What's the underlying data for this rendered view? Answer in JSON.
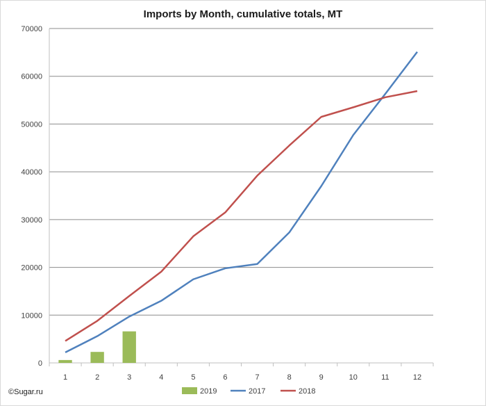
{
  "chart_data": {
    "type": "bar+line",
    "title": "Imports by Month, cumulative totals, MT",
    "xlabel": "",
    "ylabel": "",
    "categories": [
      "1",
      "2",
      "3",
      "4",
      "5",
      "6",
      "7",
      "8",
      "9",
      "10",
      "11",
      "12"
    ],
    "ylim": [
      0,
      70000
    ],
    "yticks": [
      "0",
      "10000",
      "20000",
      "30000",
      "40000",
      "50000",
      "60000",
      "70000"
    ],
    "grid": true,
    "legend_position": "bottom",
    "series": [
      {
        "name": "2019",
        "kind": "bar",
        "color": "#9bbb59",
        "values": [
          600,
          2300,
          6600,
          null,
          null,
          null,
          null,
          null,
          null,
          null,
          null,
          null
        ]
      },
      {
        "name": "2017",
        "kind": "line",
        "color": "#4f81bd",
        "values": [
          2200,
          5600,
          9700,
          13000,
          17500,
          19800,
          20700,
          27300,
          37000,
          47700,
          56300,
          65100
        ]
      },
      {
        "name": "2018",
        "kind": "line",
        "color": "#c0504d",
        "values": [
          4600,
          8800,
          14000,
          19100,
          26500,
          31500,
          39200,
          45500,
          51500,
          53500,
          55600,
          56900
        ]
      }
    ]
  },
  "credit": "©Sugar.ru"
}
